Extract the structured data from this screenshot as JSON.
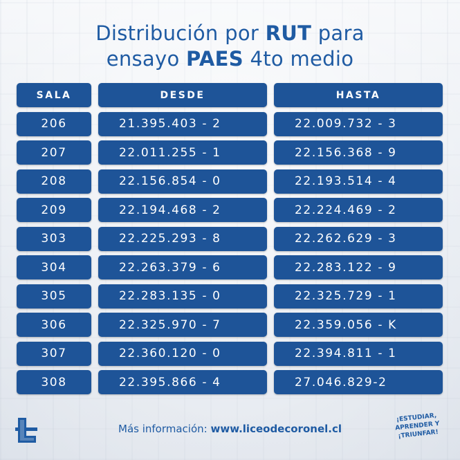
{
  "title": {
    "line1_pre": "Distribución por ",
    "line1_bold": "RUT",
    "line1_post": " para",
    "line2_pre": "ensayo ",
    "line2_bold": "PAES",
    "line2_post": " 4to medio"
  },
  "table": {
    "headers": {
      "sala": "SALA",
      "desde": "DESDE",
      "hasta": "HASTA"
    },
    "rows": [
      {
        "sala": "206",
        "desde": "21.395.403 - 2",
        "hasta": "22.009.732 - 3"
      },
      {
        "sala": "207",
        "desde": "22.011.255 - 1",
        "hasta": "22.156.368 - 9"
      },
      {
        "sala": "208",
        "desde": "22.156.854 - 0",
        "hasta": "22.193.514 - 4"
      },
      {
        "sala": "209",
        "desde": "22.194.468 - 2",
        "hasta": "22.224.469 - 2"
      },
      {
        "sala": "303",
        "desde": "22.225.293 - 8",
        "hasta": "22.262.629 - 3"
      },
      {
        "sala": "304",
        "desde": "22.263.379 - 6",
        "hasta": "22.283.122 - 9"
      },
      {
        "sala": "305",
        "desde": "22.283.135 - 0",
        "hasta": "22.325.729 - 1"
      },
      {
        "sala": "306",
        "desde": "22.325.970 - 7",
        "hasta": "22.359.056 - K"
      },
      {
        "sala": "307",
        "desde": "22.360.120 - 0",
        "hasta": "22.394.811 - 1"
      },
      {
        "sala": "308",
        "desde": "22.395.866 - 4",
        "hasta": "27.046.829-2"
      }
    ]
  },
  "footer": {
    "label": "Más información: ",
    "url": "www.liceodecoronel.cl"
  },
  "badge": {
    "line1": "¡ESTUDIAR,",
    "line2": "APRENDER Y",
    "line3": "¡TRIUNFAR!"
  },
  "colors": {
    "primary": "#1e5498",
    "title": "#1f5ba3",
    "cell_text": "#ffffff"
  },
  "icons": {
    "logo": "school-logo-icon"
  }
}
